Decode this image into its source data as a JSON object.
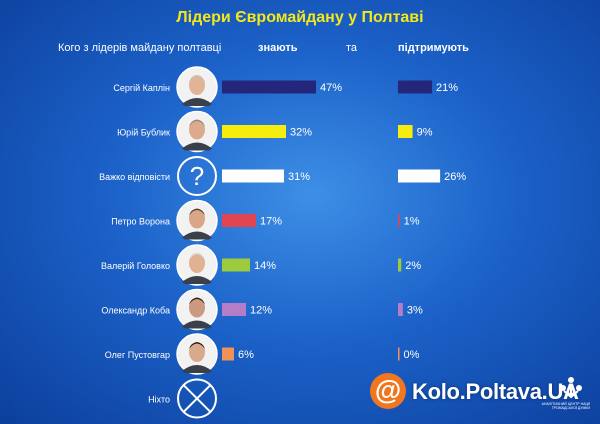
{
  "title": "Лідери Євромайдану у Полтаві",
  "header": {
    "question": "Кого з лідерів майдану полтавці",
    "know_label": "знають",
    "and_label": "та",
    "support_label": "підтримують"
  },
  "chart_data": {
    "type": "bar",
    "title": "Лідери Євромайдану у Полтаві",
    "categories": [
      "Сергій Каплін",
      "Юрій Бублик",
      "Важко відповісти",
      "Петро Ворона",
      "Валерій Головко",
      "Олександр Коба",
      "Олег Пустовгар",
      "Ніхто"
    ],
    "series": [
      {
        "name": "знають",
        "values": [
          47,
          32,
          31,
          17,
          14,
          12,
          6,
          null
        ]
      },
      {
        "name": "підтримують",
        "values": [
          21,
          9,
          26,
          1,
          2,
          3,
          0,
          null
        ]
      }
    ],
    "value_labels_know": [
      "47%",
      "32%",
      "31%",
      "17%",
      "14%",
      "12%",
      "6%",
      ""
    ],
    "value_labels_support": [
      "21%",
      "9%",
      "26%",
      "1%",
      "2%",
      "3%",
      "0%",
      ""
    ],
    "bar_colors": [
      "#23267a",
      "#f6ed0d",
      "#ffffff",
      "#e24552",
      "#9ccb3b",
      "#b57cc8",
      "#f09255",
      "#ffffff"
    ],
    "avatar_icons": [
      "portrait-photo",
      "portrait-photo",
      "question-mark-icon",
      "portrait-photo",
      "portrait-photo",
      "portrait-photo",
      "portrait-photo",
      "cross-icon"
    ],
    "xlabel": "",
    "ylabel": ""
  },
  "brand": {
    "site": "Kolo.Poltava.UA",
    "at_symbol": "@",
    "caption": "АНАЛІТИЧНИЙ ЦЕНТР НАЦІЇ ГРОМАДСЬКОЇ ДУМКИ"
  }
}
